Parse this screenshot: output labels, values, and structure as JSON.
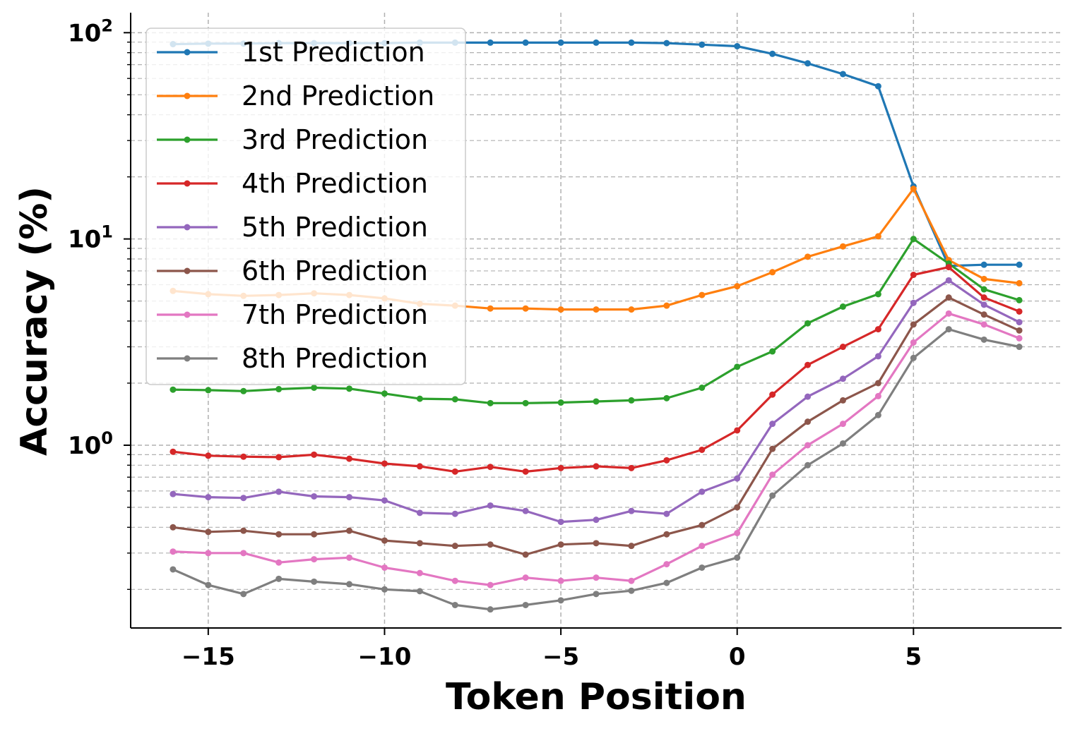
{
  "chart_data": {
    "type": "line",
    "xlabel": "Token Position",
    "ylabel": "Accuracy (%)",
    "yscale": "log",
    "xlim": [
      -17.2,
      9.2
    ],
    "ylim": [
      0.13,
      125
    ],
    "xticks": [
      -15,
      -10,
      -5,
      0,
      5
    ],
    "xtick_labels": [
      "−15",
      "−10",
      "−5",
      "0",
      "5"
    ],
    "yticks": [
      1,
      10,
      100
    ],
    "ytick_labels": [
      {
        "base": "10",
        "exp": "0"
      },
      {
        "base": "10",
        "exp": "1"
      },
      {
        "base": "10",
        "exp": "2"
      }
    ],
    "grid": true,
    "legend_position": "top-left",
    "x": [
      -16,
      -15,
      -14,
      -13,
      -12,
      -11,
      -10,
      -9,
      -8,
      -7,
      -6,
      -5,
      -4,
      -3,
      -2,
      -1,
      0,
      1,
      2,
      3,
      4,
      5,
      6,
      7,
      8
    ],
    "series": [
      {
        "name": "1st Prediction",
        "color": "#1f77b4",
        "values": [
          88,
          88.5,
          88.5,
          89,
          89,
          89,
          89,
          89.5,
          89.5,
          89.5,
          89.5,
          89.5,
          89.5,
          89.5,
          89,
          87.5,
          86,
          79,
          71,
          63,
          55,
          18,
          7.4,
          7.5,
          7.5
        ]
      },
      {
        "name": "2nd Prediction",
        "color": "#ff7f0e",
        "values": [
          5.6,
          5.4,
          5.3,
          5.35,
          5.45,
          5.35,
          5.15,
          4.85,
          4.75,
          4.6,
          4.6,
          4.55,
          4.55,
          4.55,
          4.75,
          5.35,
          5.9,
          6.9,
          8.2,
          9.2,
          10.3,
          17.5,
          7.9,
          6.4,
          6.1
        ]
      },
      {
        "name": "3rd Prediction",
        "color": "#2ca02c",
        "values": [
          1.86,
          1.85,
          1.83,
          1.87,
          1.9,
          1.88,
          1.78,
          1.68,
          1.67,
          1.6,
          1.6,
          1.61,
          1.63,
          1.65,
          1.69,
          1.9,
          2.4,
          2.85,
          3.9,
          4.7,
          5.4,
          10,
          7.6,
          5.7,
          5.05
        ]
      },
      {
        "name": "4th Prediction",
        "color": "#d62728",
        "values": [
          0.93,
          0.89,
          0.88,
          0.875,
          0.9,
          0.86,
          0.815,
          0.79,
          0.745,
          0.785,
          0.745,
          0.775,
          0.79,
          0.775,
          0.845,
          0.95,
          1.18,
          1.76,
          2.45,
          3.0,
          3.65,
          6.7,
          7.3,
          5.2,
          4.45
        ]
      },
      {
        "name": "5th Prediction",
        "color": "#9467bd",
        "values": [
          0.58,
          0.56,
          0.555,
          0.595,
          0.565,
          0.56,
          0.54,
          0.47,
          0.465,
          0.51,
          0.48,
          0.425,
          0.435,
          0.48,
          0.465,
          0.595,
          0.69,
          1.27,
          1.72,
          2.1,
          2.7,
          4.9,
          6.3,
          4.8,
          3.95
        ]
      },
      {
        "name": "6th Prediction",
        "color": "#8c564b",
        "values": [
          0.4,
          0.38,
          0.385,
          0.37,
          0.37,
          0.385,
          0.345,
          0.335,
          0.325,
          0.33,
          0.295,
          0.33,
          0.335,
          0.325,
          0.37,
          0.41,
          0.5,
          0.96,
          1.3,
          1.65,
          2.0,
          3.85,
          5.2,
          4.3,
          3.6
        ]
      },
      {
        "name": "7th Prediction",
        "color": "#e377c2",
        "values": [
          0.305,
          0.3,
          0.3,
          0.27,
          0.28,
          0.285,
          0.255,
          0.24,
          0.22,
          0.21,
          0.228,
          0.22,
          0.228,
          0.22,
          0.265,
          0.325,
          0.375,
          0.72,
          1.0,
          1.27,
          1.73,
          3.15,
          4.35,
          3.85,
          3.3
        ]
      },
      {
        "name": "8th Prediction",
        "color": "#7f7f7f",
        "values": [
          0.25,
          0.21,
          0.19,
          0.225,
          0.218,
          0.212,
          0.2,
          0.196,
          0.168,
          0.16,
          0.168,
          0.177,
          0.19,
          0.197,
          0.215,
          0.255,
          0.285,
          0.57,
          0.8,
          1.02,
          1.4,
          2.65,
          3.65,
          3.25,
          3.0
        ]
      }
    ]
  }
}
